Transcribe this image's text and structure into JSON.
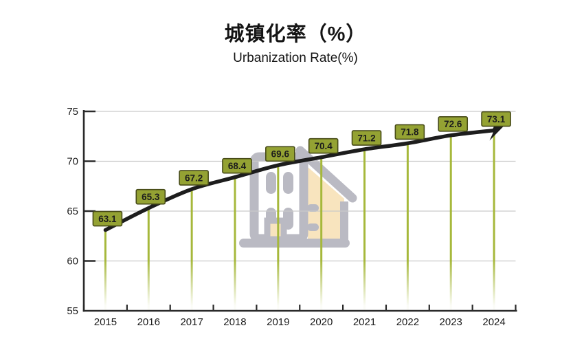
{
  "header": {
    "title": "城镇化率（%）",
    "subtitle": "Urbanization Rate(%)"
  },
  "chart_data": {
    "type": "line",
    "title": "城镇化率（%）",
    "subtitle": "Urbanization Rate(%)",
    "categories": [
      "2015",
      "2016",
      "2017",
      "2018",
      "2019",
      "2020",
      "2021",
      "2022",
      "2023",
      "2024"
    ],
    "values": [
      63.1,
      65.3,
      67.2,
      68.4,
      69.6,
      70.4,
      71.2,
      71.8,
      72.6,
      73.1
    ],
    "data_labels": [
      "63.1",
      "65.3",
      "67.2",
      "68.4",
      "69.6",
      "70.4",
      "71.2",
      "71.8",
      "72.6",
      "73.1"
    ],
    "xlabel": "",
    "ylabel": "",
    "ylim": [
      55,
      75
    ],
    "yticks": [
      55,
      60,
      65,
      70,
      75
    ],
    "grid": true,
    "legend_position": "none",
    "colors": {
      "trend_line": "#1d1d1d",
      "stem": "#a6b83b",
      "label_fill": "#94a233",
      "label_border": "#474b18",
      "label_text": "#ffffff",
      "gridline": "#c9c9c9",
      "axis": "#2a2a2a",
      "axis_text": "#1c1c1c",
      "watermark_gray": "#b7b7c0",
      "watermark_tan": "#f8e3bb"
    }
  }
}
